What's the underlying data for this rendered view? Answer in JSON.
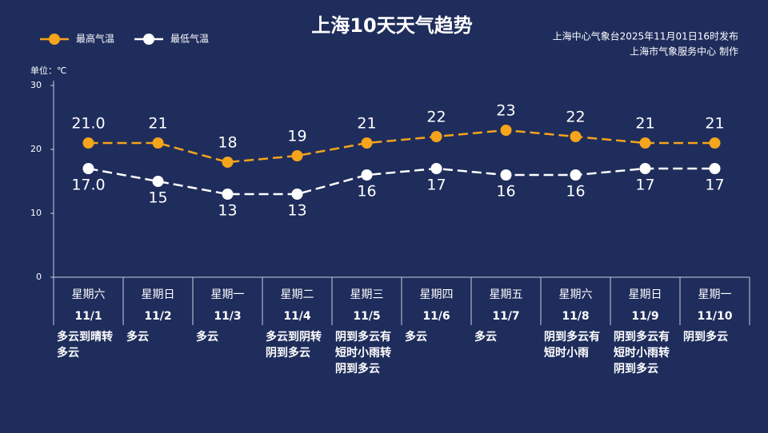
{
  "chart_data": {
    "type": "line",
    "title": "上海10天天气趋势",
    "subtitle": [
      "上海中心气象台2025年11月01日16时发布",
      "上海市气象服务中心 制作"
    ],
    "y_label": "单位：℃",
    "categories": [
      "11/1",
      "11/2",
      "11/3",
      "11/4",
      "11/5",
      "11/6",
      "11/7",
      "11/8",
      "11/9",
      "11/10"
    ],
    "weekdays": [
      "星期六",
      "星期日",
      "星期一",
      "星期二",
      "星期三",
      "星期四",
      "星期五",
      "星期六",
      "星期日",
      "星期一"
    ],
    "weekday_colors": [
      "#f5a41c",
      "#f5a41c",
      "#ffffff",
      "#ffffff",
      "#ffffff",
      "#ffffff",
      "#ffffff",
      "#f5a41c",
      "#f5a41c",
      "#ffffff"
    ],
    "weather": [
      [
        "多云到晴转",
        "多云"
      ],
      [
        "多云"
      ],
      [
        "多云"
      ],
      [
        "多云到阴转",
        "阴到多云"
      ],
      [
        "阴到多云有",
        "短时小雨转",
        "阴到多云"
      ],
      [
        "多云"
      ],
      [
        "多云"
      ],
      [
        "阴到多云有",
        "短时小雨"
      ],
      [
        "阴到多云有",
        "短时小雨转",
        "阴到多云"
      ],
      [
        "阴到多云"
      ]
    ],
    "series": [
      {
        "name": "最高气温",
        "color": "#f5a41c",
        "values": [
          21,
          21,
          18,
          19,
          21,
          22,
          23,
          22,
          21,
          21
        ],
        "value_labels": [
          "21.0",
          "21",
          "18",
          "19",
          "21",
          "22",
          "23",
          "22",
          "21",
          "21"
        ]
      },
      {
        "name": "最低气温",
        "color": "#ffffff",
        "values": [
          17,
          15,
          13,
          13,
          16,
          17,
          16,
          16,
          17,
          17
        ],
        "value_labels": [
          "17.0",
          "15",
          "13",
          "13",
          "16",
          "17",
          "16",
          "16",
          "17",
          "17"
        ]
      }
    ],
    "ylim": [
      0,
      30
    ],
    "yticks": [
      0,
      10,
      20,
      30
    ],
    "grid": false
  }
}
